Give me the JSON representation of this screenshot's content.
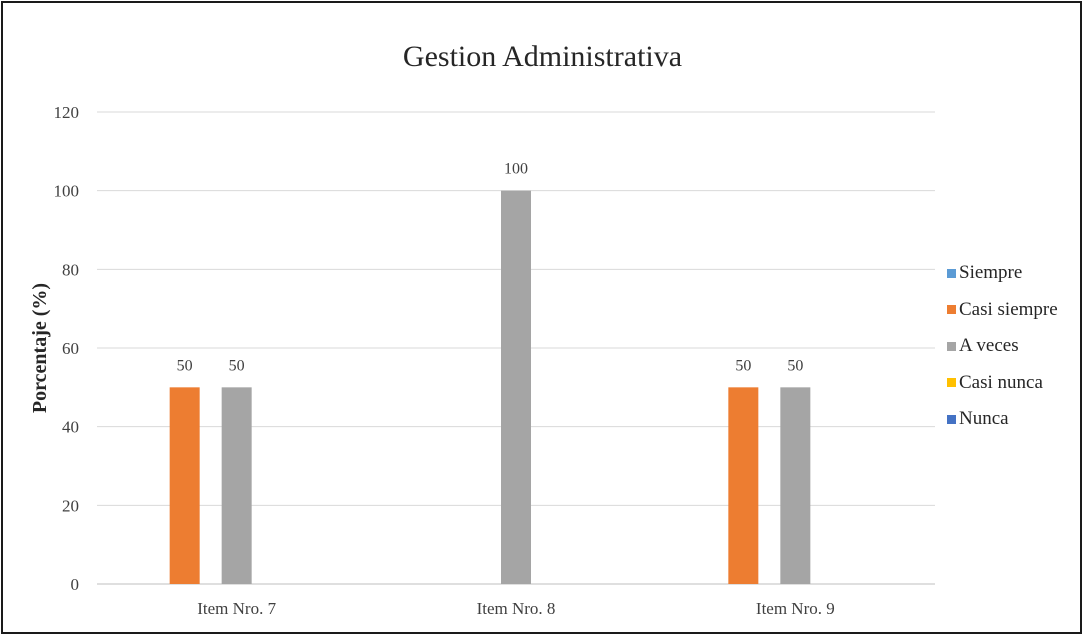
{
  "chart_data": {
    "type": "bar",
    "title": "Gestion Administrativa",
    "xlabel": "",
    "ylabel": "Porcentaje (%)",
    "ylim": [
      0,
      120
    ],
    "yticks": [
      "0",
      "20",
      "40",
      "60",
      "80",
      "100",
      "120"
    ],
    "categories": [
      "Item Nro. 7",
      "Item Nro. 8",
      "Item Nro. 9"
    ],
    "series": [
      {
        "name": "Siempre",
        "color": "#5b9bd5",
        "values": [
          0,
          0,
          0
        ]
      },
      {
        "name": "Casi siempre",
        "color": "#ed7d31",
        "values": [
          50,
          0,
          50
        ]
      },
      {
        "name": "A veces",
        "color": "#a5a5a5",
        "values": [
          50,
          100,
          50
        ]
      },
      {
        "name": "Casi nunca",
        "color": "#ffc000",
        "values": [
          0,
          0,
          0
        ]
      },
      {
        "name": "Nunca",
        "color": "#4472c4",
        "values": [
          0,
          0,
          0
        ]
      }
    ],
    "grid": true,
    "legend_position": "right"
  }
}
